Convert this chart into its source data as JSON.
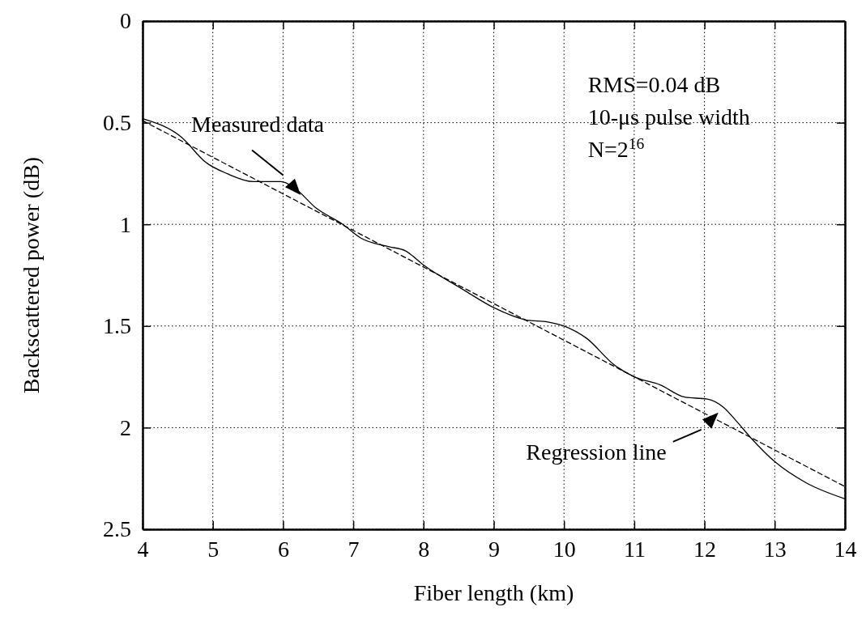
{
  "chart_data": {
    "type": "line",
    "xlabel": "Fiber length (km)",
    "ylabel": "Backscattered power (dB)",
    "xlim": [
      4,
      14
    ],
    "xticks": [
      4,
      5,
      6,
      7,
      8,
      9,
      10,
      11,
      12,
      13,
      14
    ],
    "ylim": [
      2.5,
      0
    ],
    "yticks": [
      0,
      0.5,
      1,
      1.5,
      2,
      2.5
    ],
    "grid": true,
    "series": [
      {
        "color": "#000000",
        "line_style": "solid",
        "x": [
          4.0,
          4.55,
          4.9,
          5.2,
          5.58,
          5.97,
          6.16,
          6.47,
          6.85,
          7.12,
          7.51,
          7.74,
          8.0,
          8.56,
          9.0,
          9.46,
          9.77,
          10.0,
          10.32,
          10.71,
          11.0,
          11.37,
          11.72,
          12.04,
          12.27,
          12.46,
          12.66,
          13.01,
          13.44,
          14.0
        ],
        "values": [
          0.48,
          0.57,
          0.695,
          0.75,
          0.79,
          0.79,
          0.82,
          0.92,
          1.0,
          1.07,
          1.11,
          1.13,
          1.2,
          1.32,
          1.41,
          1.47,
          1.48,
          1.5,
          1.56,
          1.69,
          1.75,
          1.79,
          1.85,
          1.86,
          1.9,
          1.97,
          2.05,
          2.17,
          2.27,
          2.35
        ]
      },
      {
        "color": "#000000",
        "line_style": "dashed",
        "x": [
          4,
          14
        ],
        "values": [
          0.49,
          2.29
        ]
      }
    ],
    "annotations": [
      {
        "text": "Measured data",
        "x": 6.16,
        "y": 0.82
      },
      {
        "text": "Regression line",
        "x": 12.1,
        "y": 1.96
      },
      "RMS=0.04 dB",
      "10-μs pulse width",
      "N=2$^{16}$"
    ]
  }
}
